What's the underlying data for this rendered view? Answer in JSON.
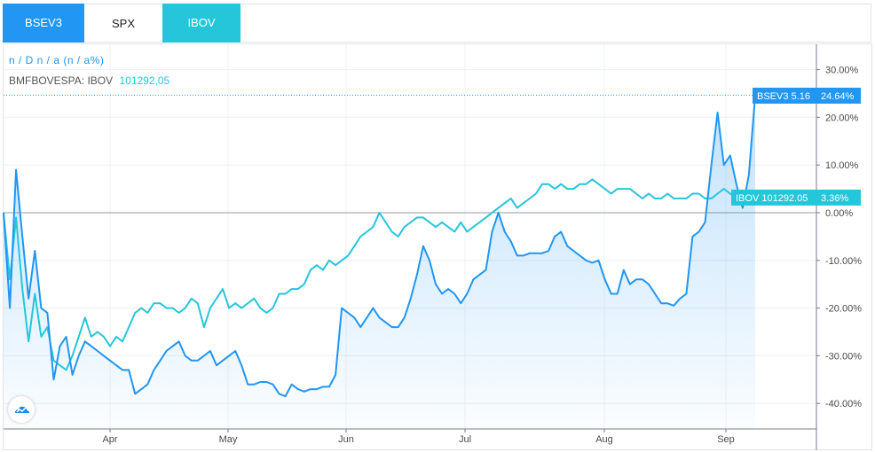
{
  "tabs": [
    {
      "label": "BSEV3",
      "color": "#2196f3"
    },
    {
      "label": "SPX",
      "color": "#ffffff"
    },
    {
      "label": "IBOV",
      "color": "#26c6da"
    }
  ],
  "legend": {
    "main": "n / D n / a (n / a%)",
    "compare_label": "BMFBOVESPA: IBOV",
    "compare_value": "101292,05"
  },
  "tags": {
    "bsev3": {
      "label": "BSEV3 5.16",
      "pct": "24.64%"
    },
    "ibov": {
      "label": "IBOV 101292.05",
      "pct": "3.36%"
    }
  },
  "chart_data": {
    "type": "line",
    "title": "",
    "ylabel": "",
    "ylim": [
      -45,
      33
    ],
    "y_ticks": [
      "30.00%",
      "20.00%",
      "10.00%",
      "0.00%",
      "-10.00%",
      "-20.00%",
      "-30.00%",
      "-40.00%"
    ],
    "x_ticks": [
      "Apr",
      "May",
      "Jun",
      "Jul",
      "Aug",
      "Sep"
    ],
    "grid": true,
    "series": [
      {
        "name": "BSEV3",
        "color": "#2196f3",
        "area": true,
        "points": [
          [
            0,
            0
          ],
          [
            1,
            -20
          ],
          [
            2,
            9
          ],
          [
            3,
            -5
          ],
          [
            4,
            -18
          ],
          [
            5,
            -8
          ],
          [
            6,
            -20
          ],
          [
            7,
            -21
          ],
          [
            8,
            -35
          ],
          [
            9,
            -28
          ],
          [
            10,
            -26
          ],
          [
            11,
            -34
          ],
          [
            12,
            -30
          ],
          [
            13,
            -27
          ],
          [
            14,
            -28
          ],
          [
            15,
            -29
          ],
          [
            16,
            -30
          ],
          [
            17,
            -31
          ],
          [
            18,
            -32
          ],
          [
            19,
            -33
          ],
          [
            20,
            -33
          ],
          [
            21,
            -38
          ],
          [
            22,
            -37
          ],
          [
            23,
            -36
          ],
          [
            24,
            -33
          ],
          [
            25,
            -31
          ],
          [
            26,
            -29
          ],
          [
            27,
            -28
          ],
          [
            28,
            -27
          ],
          [
            29,
            -30
          ],
          [
            30,
            -31
          ],
          [
            31,
            -31
          ],
          [
            32,
            -30
          ],
          [
            33,
            -29
          ],
          [
            34,
            -32
          ],
          [
            35,
            -31
          ],
          [
            36,
            -30
          ],
          [
            37,
            -29
          ],
          [
            38,
            -32
          ],
          [
            39,
            -36
          ],
          [
            40,
            -36
          ],
          [
            41,
            -35.5
          ],
          [
            42,
            -35.5
          ],
          [
            43,
            -36
          ],
          [
            44,
            -38
          ],
          [
            45,
            -38.5
          ],
          [
            46,
            -36
          ],
          [
            47,
            -37
          ],
          [
            48,
            -37.5
          ],
          [
            49,
            -37
          ],
          [
            50,
            -37
          ],
          [
            51,
            -36.5
          ],
          [
            52,
            -36.5
          ],
          [
            53,
            -34
          ],
          [
            54,
            -20
          ],
          [
            55,
            -21
          ],
          [
            56,
            -22
          ],
          [
            57,
            -24
          ],
          [
            58,
            -22
          ],
          [
            59,
            -20
          ],
          [
            60,
            -22
          ],
          [
            61,
            -23
          ],
          [
            62,
            -24
          ],
          [
            63,
            -24
          ],
          [
            64,
            -22
          ],
          [
            65,
            -18
          ],
          [
            66,
            -13
          ],
          [
            67,
            -7
          ],
          [
            68,
            -10
          ],
          [
            69,
            -15
          ],
          [
            70,
            -17
          ],
          [
            71,
            -16
          ],
          [
            72,
            -17
          ],
          [
            73,
            -19
          ],
          [
            74,
            -17
          ],
          [
            75,
            -14
          ],
          [
            76,
            -13
          ],
          [
            77,
            -12
          ],
          [
            78,
            -4
          ],
          [
            79,
            0
          ],
          [
            80,
            -4
          ],
          [
            81,
            -6
          ],
          [
            82,
            -9
          ],
          [
            83,
            -9
          ],
          [
            84,
            -8.5
          ],
          [
            85,
            -8.5
          ],
          [
            86,
            -8.5
          ],
          [
            87,
            -8
          ],
          [
            88,
            -5
          ],
          [
            89,
            -4
          ],
          [
            90,
            -7
          ],
          [
            91,
            -8
          ],
          [
            92,
            -9
          ],
          [
            93,
            -10
          ],
          [
            94,
            -10.5
          ],
          [
            95,
            -10
          ],
          [
            96,
            -14
          ],
          [
            97,
            -17
          ],
          [
            98,
            -17
          ],
          [
            99,
            -12
          ],
          [
            100,
            -15
          ],
          [
            101,
            -14
          ],
          [
            102,
            -14
          ],
          [
            103,
            -15
          ],
          [
            104,
            -17
          ],
          [
            105,
            -19
          ],
          [
            106,
            -19
          ],
          [
            107,
            -19.5
          ],
          [
            108,
            -18
          ],
          [
            109,
            -17
          ],
          [
            110,
            -5
          ],
          [
            111,
            -4
          ],
          [
            112,
            -2
          ],
          [
            113,
            10
          ],
          [
            114,
            21
          ],
          [
            115,
            10
          ],
          [
            116,
            12
          ],
          [
            117,
            6
          ],
          [
            118,
            1
          ],
          [
            119,
            8
          ],
          [
            120,
            24.64
          ]
        ]
      },
      {
        "name": "IBOV",
        "color": "#26c6da",
        "area": false,
        "points": [
          [
            0,
            0
          ],
          [
            1,
            -14
          ],
          [
            2,
            -1
          ],
          [
            3,
            -16
          ],
          [
            4,
            -27
          ],
          [
            5,
            -17
          ],
          [
            6,
            -26
          ],
          [
            7,
            -24
          ],
          [
            8,
            -31
          ],
          [
            9,
            -32
          ],
          [
            10,
            -33
          ],
          [
            11,
            -30
          ],
          [
            12,
            -26
          ],
          [
            13,
            -22
          ],
          [
            14,
            -26
          ],
          [
            15,
            -25
          ],
          [
            16,
            -26
          ],
          [
            17,
            -28
          ],
          [
            18,
            -26
          ],
          [
            19,
            -27
          ],
          [
            20,
            -24
          ],
          [
            21,
            -21
          ],
          [
            22,
            -20
          ],
          [
            23,
            -21
          ],
          [
            24,
            -19
          ],
          [
            25,
            -19
          ],
          [
            26,
            -20
          ],
          [
            27,
            -20
          ],
          [
            28,
            -21
          ],
          [
            29,
            -20
          ],
          [
            30,
            -18
          ],
          [
            31,
            -19
          ],
          [
            32,
            -24
          ],
          [
            33,
            -20
          ],
          [
            34,
            -18
          ],
          [
            35,
            -16
          ],
          [
            36,
            -20
          ],
          [
            37,
            -19
          ],
          [
            38,
            -20
          ],
          [
            39,
            -19
          ],
          [
            40,
            -18
          ],
          [
            41,
            -20
          ],
          [
            42,
            -21
          ],
          [
            43,
            -20
          ],
          [
            44,
            -17
          ],
          [
            45,
            -17
          ],
          [
            46,
            -16
          ],
          [
            47,
            -16
          ],
          [
            48,
            -15
          ],
          [
            49,
            -12
          ],
          [
            50,
            -11
          ],
          [
            51,
            -12
          ],
          [
            52,
            -10
          ],
          [
            53,
            -11
          ],
          [
            54,
            -10
          ],
          [
            55,
            -9
          ],
          [
            56,
            -7
          ],
          [
            57,
            -5
          ],
          [
            58,
            -4
          ],
          [
            59,
            -3
          ],
          [
            60,
            0
          ],
          [
            61,
            -2
          ],
          [
            62,
            -4
          ],
          [
            63,
            -5
          ],
          [
            64,
            -3
          ],
          [
            65,
            -2
          ],
          [
            66,
            -1
          ],
          [
            67,
            -1
          ],
          [
            68,
            -2
          ],
          [
            69,
            -3
          ],
          [
            70,
            -2
          ],
          [
            71,
            -3
          ],
          [
            72,
            -4
          ],
          [
            73,
            -2
          ],
          [
            74,
            -4
          ],
          [
            75,
            -3
          ],
          [
            76,
            -2
          ],
          [
            77,
            -1
          ],
          [
            78,
            0
          ],
          [
            79,
            1
          ],
          [
            80,
            2
          ],
          [
            81,
            3
          ],
          [
            82,
            1
          ],
          [
            83,
            2
          ],
          [
            84,
            3
          ],
          [
            85,
            4
          ],
          [
            86,
            6
          ],
          [
            87,
            6
          ],
          [
            88,
            5
          ],
          [
            89,
            6
          ],
          [
            90,
            5
          ],
          [
            91,
            5
          ],
          [
            92,
            6
          ],
          [
            93,
            6
          ],
          [
            94,
            7
          ],
          [
            95,
            6
          ],
          [
            96,
            5
          ],
          [
            97,
            4
          ],
          [
            98,
            5
          ],
          [
            99,
            5
          ],
          [
            100,
            5
          ],
          [
            101,
            4
          ],
          [
            102,
            3
          ],
          [
            103,
            4
          ],
          [
            104,
            3
          ],
          [
            105,
            3
          ],
          [
            106,
            4
          ],
          [
            107,
            3
          ],
          [
            108,
            3
          ],
          [
            109,
            3
          ],
          [
            110,
            4
          ],
          [
            111,
            4
          ],
          [
            112,
            3
          ],
          [
            113,
            3
          ],
          [
            114,
            4
          ],
          [
            115,
            5
          ],
          [
            116,
            4
          ],
          [
            117,
            3
          ],
          [
            118,
            4
          ],
          [
            119,
            3
          ],
          [
            120,
            3.36
          ]
        ]
      }
    ]
  }
}
